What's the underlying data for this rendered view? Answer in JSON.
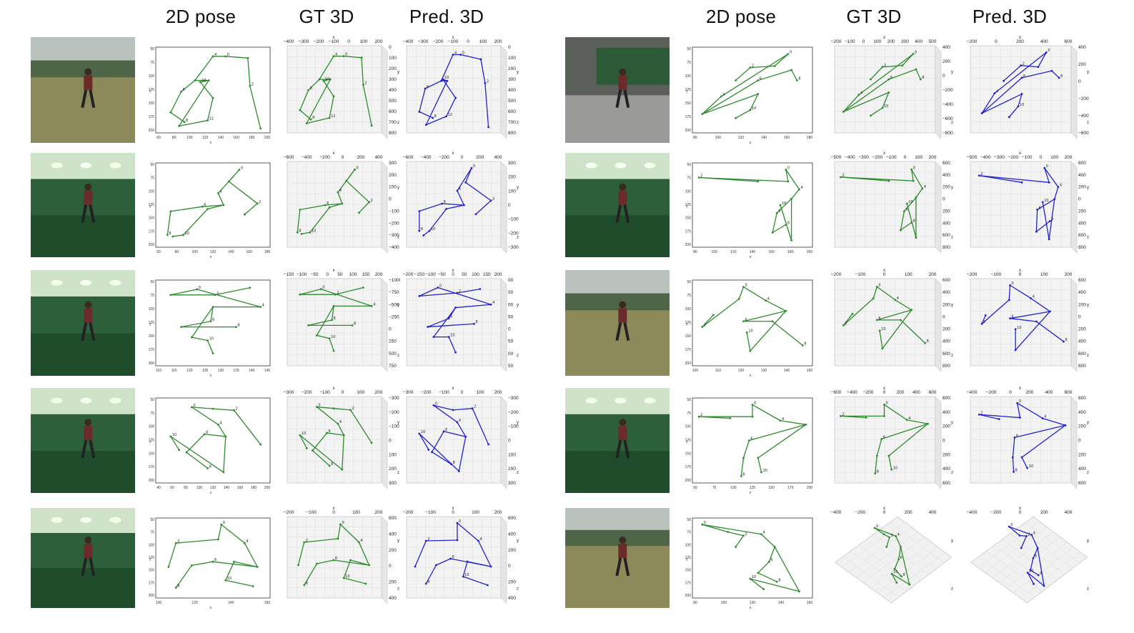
{
  "headers": {
    "left": [
      "2D pose",
      "GT 3D",
      "Pred. 3D"
    ],
    "right": [
      "2D pose",
      "GT 3D",
      "Pred. 3D"
    ]
  },
  "colors": {
    "gt": "#2e8b2e",
    "pred": "#2222cc",
    "greenscreen": "#2f6b3c",
    "field": "#8a8a55"
  },
  "rows": [
    {
      "side": "left",
      "scene": "outdoor",
      "pose2d": {
        "x_ticks": [
          "60",
          "80",
          "100",
          "120",
          "140",
          "160",
          "180",
          "200"
        ],
        "y_ticks": [
          "50",
          "75",
          "100",
          "125",
          "150",
          "175",
          "200"
        ]
      },
      "gt": {
        "top": [
          "−400",
          "−300",
          "−200",
          "−100",
          "0",
          "100",
          "200"
        ],
        "right": [
          "0",
          "100",
          "200",
          "300",
          "400",
          "500",
          "600",
          "700",
          "800"
        ]
      },
      "pred": {
        "top": [
          "−400",
          "−300",
          "−200",
          "−100",
          "0",
          "100",
          "200"
        ],
        "right": [
          "0",
          "100",
          "200",
          "300",
          "400",
          "500",
          "600",
          "700",
          "800"
        ]
      }
    },
    {
      "side": "left",
      "scene": "studio-chair",
      "pose2d": {
        "x_ticks": [
          "60",
          "80",
          "100",
          "120",
          "140",
          "160",
          "180"
        ],
        "y_ticks": [
          "50",
          "75",
          "100",
          "125",
          "150",
          "175",
          "200"
        ]
      },
      "gt": {
        "top": [
          "−600",
          "−400",
          "−200",
          "0",
          "200",
          "400"
        ],
        "right": [
          "300",
          "200",
          "100",
          "0",
          "−100",
          "−200",
          "−300",
          "−400"
        ]
      },
      "pred": {
        "top": [
          "−600",
          "−400",
          "−200",
          "0",
          "200",
          "400"
        ],
        "right": [
          "300",
          "200",
          "100",
          "0",
          "−100",
          "−200",
          "−300"
        ]
      }
    },
    {
      "side": "left",
      "scene": "studio-arms-up",
      "pose2d": {
        "x_ticks": [
          "110",
          "115",
          "120",
          "125",
          "130",
          "135",
          "140",
          "145"
        ],
        "y_ticks": [
          "50",
          "75",
          "100",
          "125",
          "150",
          "175",
          "200"
        ]
      },
      "gt": {
        "top": [
          "−150",
          "−100",
          "−50",
          "0",
          "50",
          "100",
          "150",
          "200"
        ],
        "right": [
          "−1000",
          "−750",
          "−500",
          "−250",
          "0",
          "250",
          "500",
          "750"
        ]
      },
      "pred": {
        "top": [
          "−200",
          "−150",
          "−100",
          "−50",
          "0",
          "50",
          "100",
          "150",
          "200"
        ],
        "right": [
          "00",
          "50",
          "00",
          "50",
          "0",
          "50",
          "00",
          "50"
        ]
      }
    },
    {
      "side": "left",
      "scene": "studio-crouch",
      "pose2d": {
        "x_ticks": [
          "40",
          "60",
          "80",
          "100",
          "120",
          "140",
          "160",
          "180",
          "200"
        ],
        "y_ticks": [
          "50",
          "75",
          "100",
          "125",
          "150",
          "175",
          "200"
        ]
      },
      "gt": {
        "top": [
          "−300",
          "−200",
          "−100",
          "0",
          "100",
          "200"
        ],
        "right": [
          "−300",
          "−200",
          "−100",
          "0",
          "100",
          "200",
          "300"
        ]
      },
      "pred": {
        "top": [
          "−300",
          "−200",
          "−100",
          "0",
          "100",
          "200"
        ],
        "right": [
          "−300",
          "−200",
          "−100",
          "0",
          "100",
          "200",
          "300"
        ]
      }
    },
    {
      "side": "left",
      "scene": "studio-sit",
      "pose2d": {
        "x_ticks": [
          "100",
          "120",
          "140",
          "160"
        ],
        "y_ticks": [
          "50",
          "75",
          "100",
          "125",
          "150",
          "175",
          "200"
        ]
      },
      "gt": {
        "top": [
          "−200",
          "−100",
          "0",
          "100",
          "200"
        ],
        "right": [
          "600",
          "400",
          "200",
          "0",
          "200",
          "400"
        ]
      },
      "pred": {
        "top": [
          "−200",
          "−100",
          "0",
          "100",
          "200"
        ],
        "right": [
          "600",
          "400",
          "200",
          "0",
          "200",
          "400"
        ]
      }
    },
    {
      "side": "right",
      "scene": "studio-grey",
      "pose2d": {
        "x_ticks": [
          "80",
          "100",
          "120",
          "140",
          "160",
          "180"
        ],
        "y_ticks": [
          "50",
          "75",
          "100",
          "125",
          "150",
          "175",
          "200"
        ]
      },
      "gt": {
        "top": [
          "−200",
          "−100",
          "0",
          "100",
          "200",
          "300",
          "400",
          "500"
        ],
        "right": [
          "400",
          "200",
          "0",
          "−200",
          "−400",
          "−600",
          "−800"
        ]
      },
      "pred": {
        "top": [
          "−200",
          "0",
          "200",
          "400",
          "600"
        ],
        "right": [
          "400",
          "200",
          "0",
          "−200",
          "−400",
          "−600"
        ]
      }
    },
    {
      "side": "right",
      "scene": "studio-point",
      "pose2d": {
        "x_ticks": [
          "80",
          "100",
          "120",
          "140",
          "160",
          "180",
          "200"
        ],
        "y_ticks": [
          "50",
          "75",
          "100",
          "125",
          "150",
          "175",
          "200"
        ]
      },
      "gt": {
        "top": [
          "−500",
          "−400",
          "−300",
          "−200",
          "−100",
          "0",
          "100",
          "200"
        ],
        "right": [
          "600",
          "400",
          "200",
          "0",
          "200",
          "400",
          "600",
          "800"
        ]
      },
      "pred": {
        "top": [
          "−500",
          "−400",
          "−300",
          "−200",
          "−100",
          "0",
          "100",
          "200"
        ],
        "right": [
          "600",
          "400",
          "200",
          "0",
          "200",
          "400",
          "600",
          "800"
        ]
      }
    },
    {
      "side": "right",
      "scene": "outdoor-lunge",
      "pose2d": {
        "x_ticks": [
          "100",
          "110",
          "120",
          "130",
          "140",
          "150"
        ],
        "y_ticks": [
          "50",
          "75",
          "100",
          "125",
          "150",
          "175",
          "200"
        ]
      },
      "gt": {
        "top": [
          "−200",
          "−100",
          "0",
          "100",
          "200"
        ],
        "right": [
          "600",
          "400",
          "200",
          "0",
          "200",
          "400",
          "600",
          "800"
        ]
      },
      "pred": {
        "top": [
          "−200",
          "−100",
          "0",
          "100",
          "200"
        ],
        "right": [
          "600",
          "400",
          "200",
          "0",
          "200",
          "400",
          "600",
          "800"
        ]
      }
    },
    {
      "side": "right",
      "scene": "studio-tpose",
      "pose2d": {
        "x_ticks": [
          "50",
          "75",
          "100",
          "125",
          "150",
          "175",
          "200"
        ],
        "y_ticks": [
          "50",
          "75",
          "100",
          "125",
          "150",
          "175",
          "200"
        ]
      },
      "gt": {
        "top": [
          "−600",
          "−400",
          "−200",
          "0",
          "200",
          "400",
          "600"
        ],
        "right": [
          "600",
          "400",
          "200",
          "0",
          "200",
          "400",
          "600"
        ]
      },
      "pred": {
        "top": [
          "−400",
          "−200",
          "0",
          "200",
          "400",
          "600"
        ],
        "right": [
          "600",
          "400",
          "200",
          "0",
          "200",
          "400",
          "600"
        ]
      }
    },
    {
      "side": "right",
      "scene": "outdoor-bend",
      "pose2d": {
        "x_ticks": [
          "80",
          "100",
          "120",
          "140",
          "160"
        ],
        "y_ticks": [
          "50",
          "75",
          "100",
          "125",
          "150",
          "175",
          "200"
        ]
      },
      "gt": {
        "top": [
          "−400",
          "−200",
          "0",
          "200",
          "400"
        ],
        "right": []
      },
      "pred": {
        "top": [
          "−400",
          "−200",
          "0",
          "200",
          "400"
        ],
        "right": []
      }
    }
  ]
}
